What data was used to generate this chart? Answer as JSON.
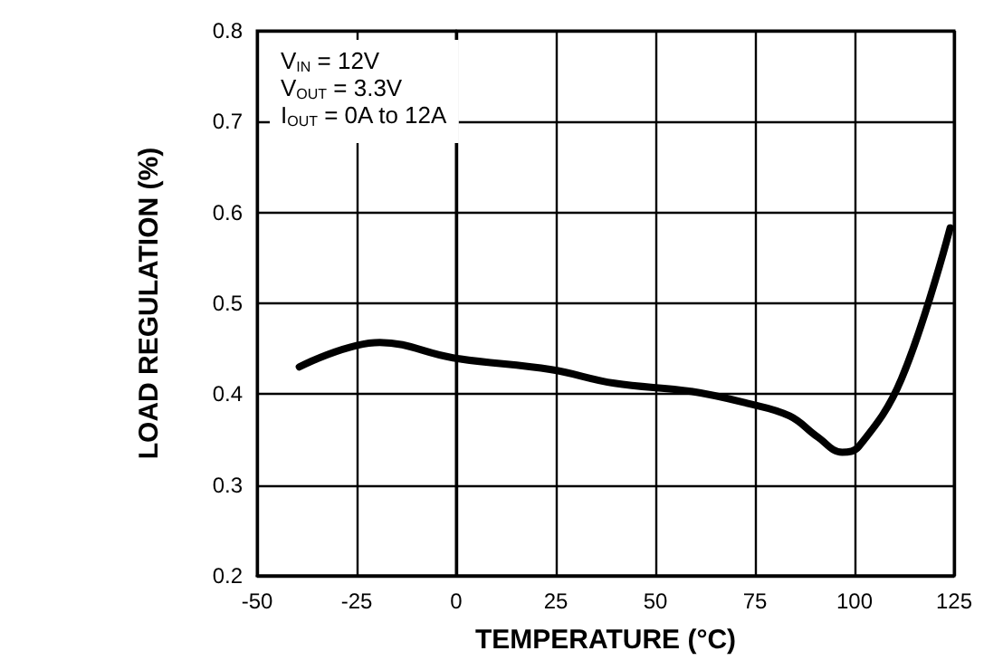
{
  "chart_data": {
    "type": "line",
    "xlabel": "TEMPERATURE (°C)",
    "ylabel": "LOAD REGULATION (%)",
    "annotations": [
      "V$_{IN}$ = 12V",
      "V$_{OUT}$ = 3.3V",
      "I$_{OUT}$ = 0A to 12A"
    ],
    "series": [
      {
        "color": "#000000",
        "x": [
          -39.4,
          -19.2,
          -0.8,
          23.9,
          39.7,
          59,
          73,
          83.7,
          90.7,
          96.9,
          101,
          111.8,
          124
        ],
        "values": [
          0.43,
          0.457,
          0.44,
          0.427,
          0.412,
          0.403,
          0.39,
          0.376,
          0.353,
          0.336,
          0.342,
          0.417,
          0.583
        ]
      }
    ],
    "xlim": [
      -50,
      125
    ],
    "xticks": [
      -50,
      -25,
      0,
      25,
      50,
      75,
      100,
      125
    ],
    "ylim": [
      0.2,
      0.8
    ],
    "yticks": [
      0.2,
      0.3,
      0.4,
      0.5,
      0.6,
      0.7,
      0.8
    ],
    "grid": true,
    "marker": "none",
    "line_style": "solid"
  }
}
